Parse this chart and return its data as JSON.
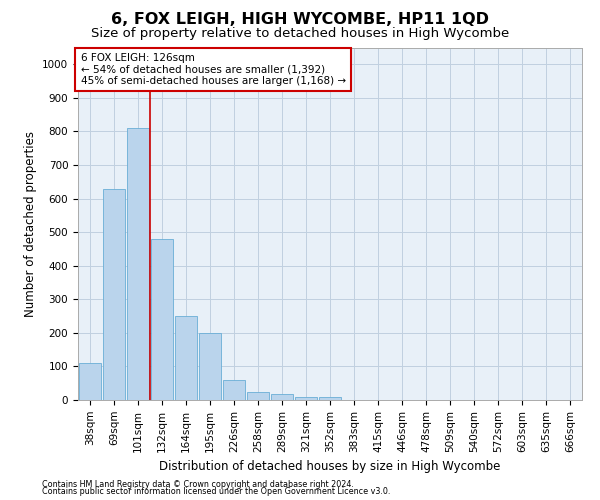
{
  "title": "6, FOX LEIGH, HIGH WYCOMBE, HP11 1QD",
  "subtitle": "Size of property relative to detached houses in High Wycombe",
  "xlabel": "Distribution of detached houses by size in High Wycombe",
  "ylabel": "Number of detached properties",
  "categories": [
    "38sqm",
    "69sqm",
    "101sqm",
    "132sqm",
    "164sqm",
    "195sqm",
    "226sqm",
    "258sqm",
    "289sqm",
    "321sqm",
    "352sqm",
    "383sqm",
    "415sqm",
    "446sqm",
    "478sqm",
    "509sqm",
    "540sqm",
    "572sqm",
    "603sqm",
    "635sqm",
    "666sqm"
  ],
  "bar_heights": [
    110,
    630,
    810,
    480,
    250,
    200,
    60,
    25,
    17,
    10,
    10,
    0,
    0,
    0,
    0,
    0,
    0,
    0,
    0,
    0,
    0
  ],
  "bar_color": "#bad4ec",
  "bar_edge_color": "#6aaed6",
  "vline_x": 2.5,
  "vline_color": "#cc0000",
  "annotation_text": "6 FOX LEIGH: 126sqm\n← 54% of detached houses are smaller (1,392)\n45% of semi-detached houses are larger (1,168) →",
  "annotation_box_color": "#ffffff",
  "annotation_box_edge": "#cc0000",
  "ylim": [
    0,
    1050
  ],
  "yticks": [
    0,
    100,
    200,
    300,
    400,
    500,
    600,
    700,
    800,
    900,
    1000
  ],
  "footnote1": "Contains HM Land Registry data © Crown copyright and database right 2024.",
  "footnote2": "Contains public sector information licensed under the Open Government Licence v3.0.",
  "bg_color": "#ffffff",
  "plot_bg_color": "#e8f0f8",
  "grid_color": "#c0d0e0",
  "title_fontsize": 11.5,
  "subtitle_fontsize": 9.5,
  "axis_label_fontsize": 8.5,
  "tick_fontsize": 7.5,
  "annotation_fontsize": 7.5,
  "footnote_fontsize": 5.8
}
